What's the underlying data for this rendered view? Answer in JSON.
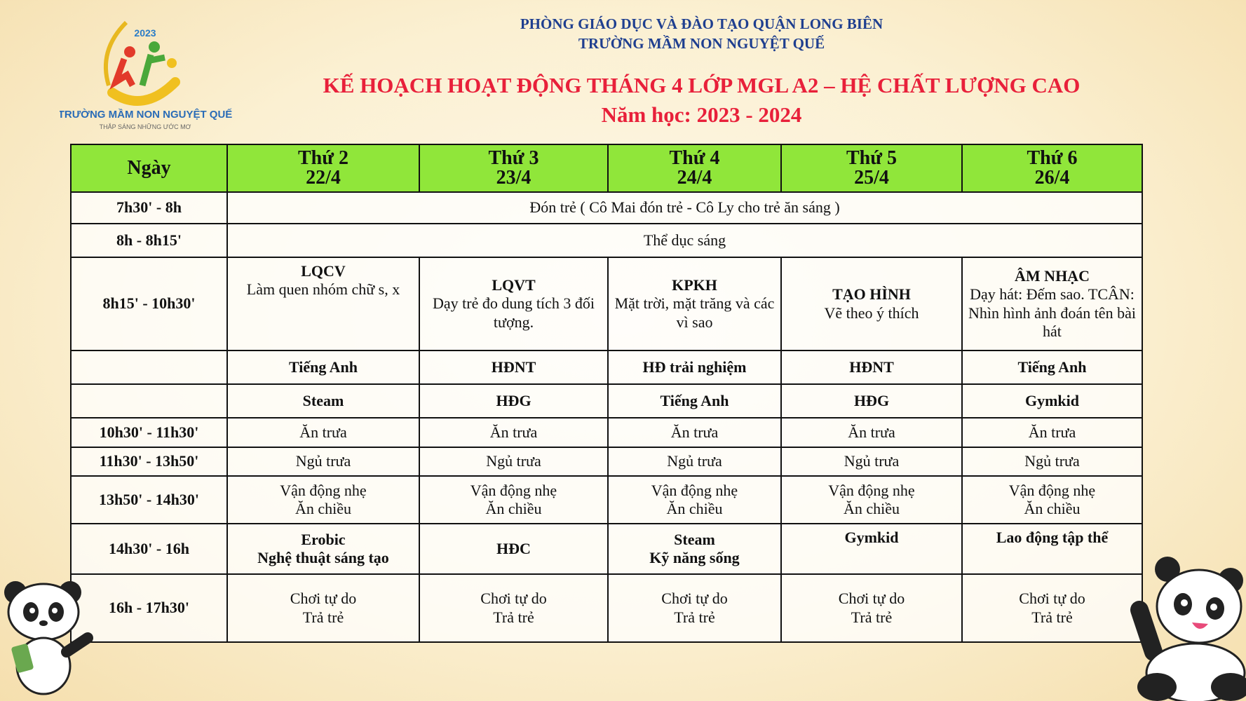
{
  "header": {
    "line1": "PHÒNG GIÁO DỤC VÀ ĐÀO TẠO QUẬN LONG BIÊN",
    "line2": "TRƯỜNG MẦM NON NGUYỆT QUẾ",
    "title": "KẾ HOẠCH HOẠT ĐỘNG THÁNG 4 LỚP MGL A2 – HỆ CHẤT LƯỢNG CAO",
    "year": "Năm học: 2023 - 2024"
  },
  "logo": {
    "year": "2023",
    "name": "TRƯỜNG MẦM NON NGUYỆT QUẾ",
    "slogan": "THẮP SÁNG NHỮNG ƯỚC MƠ"
  },
  "colors": {
    "header_green": "#90e63a",
    "title_red": "#e8203a",
    "heading_blue": "#1f3f8f"
  },
  "table": {
    "corner": "Ngày",
    "days": [
      {
        "name": "Thứ 2",
        "date": "22/4"
      },
      {
        "name": "Thứ 3",
        "date": "23/4"
      },
      {
        "name": "Thứ 4",
        "date": "24/4"
      },
      {
        "name": "Thứ 5",
        "date": "25/4"
      },
      {
        "name": "Thứ 6",
        "date": "26/4"
      }
    ],
    "row_arrival": {
      "time": "7h30' - 8h",
      "text": "Đón trẻ ( Cô Mai đón trẻ - Cô Ly cho trẻ ăn sáng )"
    },
    "row_exercise": {
      "time": "8h - 8h15'",
      "text": "Thể dục sáng"
    },
    "row_lessons": {
      "time": "8h15' - 10h30'",
      "cells": [
        {
          "title": "LQCV",
          "desc": "Làm quen nhóm chữ  s, x"
        },
        {
          "title": "LQVT",
          "desc": "Dạy trẻ đo dung tích 3 đối tượng."
        },
        {
          "title": "KPKH",
          "desc": "Mặt trời, mặt trăng và các vì sao"
        },
        {
          "title": "TẠO HÌNH",
          "desc": "Vẽ theo ý thích"
        },
        {
          "title": "ÂM NHẠC",
          "desc": "Dạy hát: Đếm sao. TCÂN: Nhìn hình ảnh đoán tên bài hát"
        }
      ]
    },
    "row_extra1": {
      "time": "",
      "cells": [
        "Tiếng Anh",
        "HĐNT",
        "HĐ trải nghiệm",
        "HĐNT",
        "Tiếng Anh"
      ]
    },
    "row_extra2": {
      "time": "",
      "cells": [
        "Steam",
        "HĐG",
        "Tiếng Anh",
        "HĐG",
        "Gymkid"
      ]
    },
    "row_lunch": {
      "time": "10h30' - 11h30'",
      "cells": [
        "Ăn trưa",
        "Ăn trưa",
        "Ăn trưa",
        "Ăn trưa",
        "Ăn trưa"
      ]
    },
    "row_nap": {
      "time": "11h30' - 13h50'",
      "cells": [
        "Ngủ trưa",
        "Ngủ trưa",
        "Ngủ trưa",
        "Ngủ trưa",
        "Ngủ trưa"
      ]
    },
    "row_afternoon": {
      "time": "13h50' - 14h30'",
      "cells": [
        [
          "Vận động nhẹ",
          "Ăn chiều"
        ],
        [
          "Vận động nhẹ",
          "Ăn chiều"
        ],
        [
          "Vận động nhẹ",
          "Ăn chiều"
        ],
        [
          "Vận động nhẹ",
          "Ăn chiều"
        ],
        [
          "Vận động nhẹ",
          "Ăn chiều"
        ]
      ]
    },
    "row_activity": {
      "time": "14h30' - 16h",
      "cells": [
        [
          "Erobic",
          "Nghệ thuật sáng tạo"
        ],
        [
          "HĐC"
        ],
        [
          "Steam",
          "Kỹ năng sống"
        ],
        [
          "Gymkid"
        ],
        [
          "Lao động tập thể"
        ]
      ]
    },
    "row_play": {
      "time": "16h - 17h30'",
      "cells": [
        [
          "Chơi tự do",
          "Trả trẻ"
        ],
        [
          "Chơi tự do",
          "Trả trẻ"
        ],
        [
          "Chơi tự do",
          "Trả trẻ"
        ],
        [
          "Chơi tự do",
          "Trả trẻ"
        ],
        [
          "Chơi tự do",
          "Trả trẻ"
        ]
      ]
    }
  }
}
